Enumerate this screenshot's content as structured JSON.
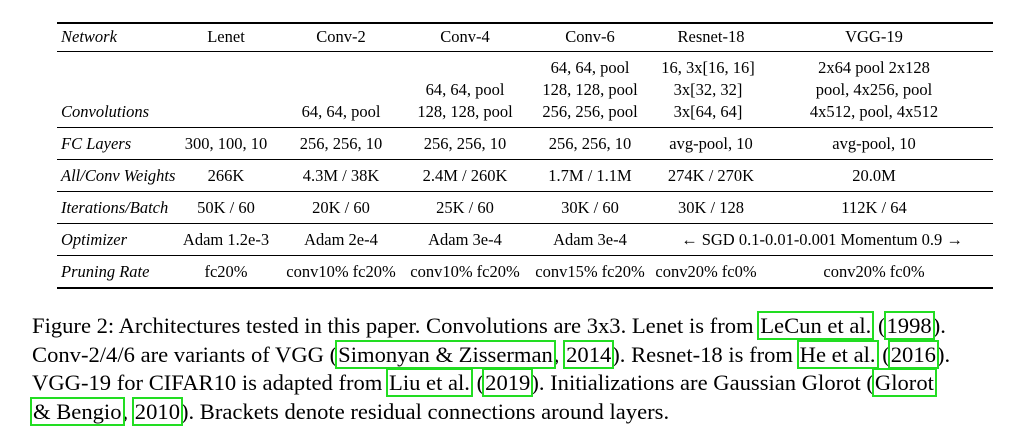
{
  "table": {
    "headers": [
      "Network",
      "Lenet",
      "Conv-2",
      "Conv-4",
      "Conv-6",
      "Resnet-18",
      "VGG-19"
    ],
    "convolutions": {
      "label": "Convolutions",
      "lenet": "",
      "conv2": [
        "64, 64, pool"
      ],
      "conv4": [
        "64, 64, pool",
        "128, 128, pool"
      ],
      "conv6": [
        "64, 64, pool",
        "128, 128, pool",
        "256, 256, pool"
      ],
      "resnet18": [
        "16, 3x[16, 16]",
        "3x[32, 32]",
        "3x[64, 64]"
      ],
      "vgg19": [
        "2x64 pool 2x128",
        "pool, 4x256, pool",
        "4x512, pool, 4x512"
      ]
    },
    "rows": [
      {
        "label": "FC Layers",
        "cells": [
          "300, 100, 10",
          "256, 256, 10",
          "256, 256, 10",
          "256, 256, 10",
          "avg-pool, 10",
          "avg-pool, 10"
        ]
      },
      {
        "label": "All/Conv Weights",
        "cells": [
          "266K",
          "4.3M / 38K",
          "2.4M / 260K",
          "1.7M / 1.1M",
          "274K / 270K",
          "20.0M"
        ]
      },
      {
        "label": "Iterations/Batch",
        "cells": [
          "50K / 60",
          "20K / 60",
          "25K / 60",
          "30K / 60",
          "30K / 128",
          "112K / 64"
        ]
      },
      {
        "label": "Optimizer",
        "cells": [
          "Adam 1.2e-3",
          "Adam 2e-4",
          "Adam 3e-4",
          "Adam 3e-4"
        ],
        "span": "← SGD 0.1-0.01-0.001 Momentum 0.9 →"
      },
      {
        "label": "Pruning Rate",
        "cells": [
          "fc20%",
          "conv10% fc20%",
          "conv10% fc20%",
          "conv15% fc20%",
          "conv20% fc0%",
          "conv20% fc0%"
        ]
      }
    ]
  },
  "caption": {
    "l1a": "Figure 2: Architectures tested in this paper. Convolutions are 3x3. Lenet is from ",
    "l1c1": "LeCun et al.",
    "l1b": " (",
    "l1c2": "1998",
    "l1d": ").",
    "l2a": "Conv-2/4/6 are variants of VGG (",
    "l2c1": "Simonyan & Zisserman",
    "l2b": ", ",
    "l2c2": "2014",
    "l2d": "). Resnet-18 is from ",
    "l2c3": "He et al.",
    "l2e": " (",
    "l2c4": "2016",
    "l2f": ").",
    "l3a": "VGG-19 for CIFAR10 is adapted from ",
    "l3c1": "Liu et al.",
    "l3b": " (",
    "l3c2": "2019",
    "l3d": "). Initializations are Gaussian Glorot (",
    "l3c3": "Glorot",
    "l4c1": "& Bengio",
    "l4a": ", ",
    "l4c2": "2010",
    "l4b": "). Brackets denote residual connections around layers."
  }
}
